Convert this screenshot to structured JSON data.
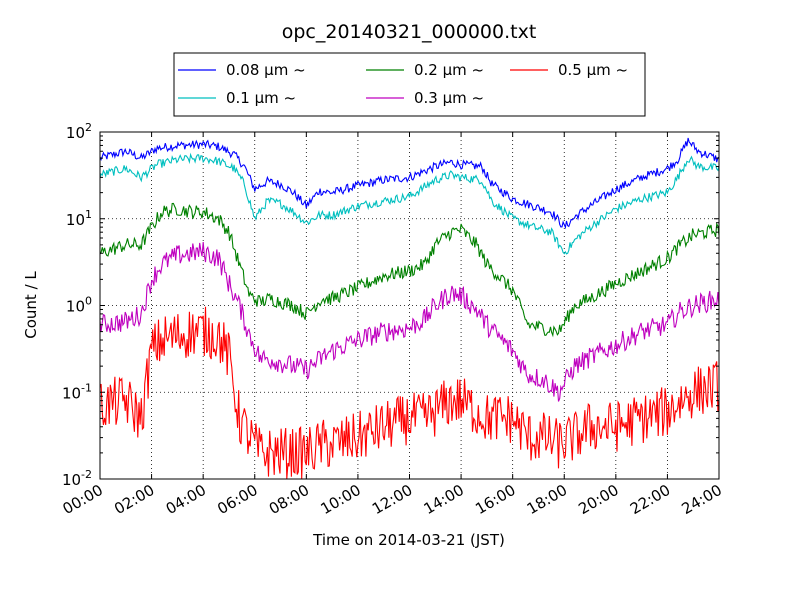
{
  "chart_data": {
    "type": "line",
    "title": "opc_20140321_000000.txt",
    "xlabel": "Time on 2014-03-21 (JST)",
    "ylabel": "Count / L",
    "y_scale": "log",
    "xlim_hours": [
      0,
      24
    ],
    "ylim": [
      0.01,
      100
    ],
    "grid": true,
    "grid_style": "dotted",
    "legend_position": "top-center",
    "x_ticks": [
      {
        "hour": 0,
        "label": "00:00"
      },
      {
        "hour": 2,
        "label": "02:00"
      },
      {
        "hour": 4,
        "label": "04:00"
      },
      {
        "hour": 6,
        "label": "06:00"
      },
      {
        "hour": 8,
        "label": "08:00"
      },
      {
        "hour": 10,
        "label": "10:00"
      },
      {
        "hour": 12,
        "label": "12:00"
      },
      {
        "hour": 14,
        "label": "14:00"
      },
      {
        "hour": 16,
        "label": "16:00"
      },
      {
        "hour": 18,
        "label": "18:00"
      },
      {
        "hour": 20,
        "label": "20:00"
      },
      {
        "hour": 22,
        "label": "22:00"
      },
      {
        "hour": 24,
        "label": "24:00"
      }
    ],
    "y_ticks": [
      {
        "value": 0.01,
        "base": "10",
        "exp": "-2"
      },
      {
        "value": 0.1,
        "base": "10",
        "exp": "-1"
      },
      {
        "value": 1,
        "base": "10",
        "exp": "0"
      },
      {
        "value": 10,
        "base": "10",
        "exp": "1"
      },
      {
        "value": 100,
        "base": "10",
        "exp": "2"
      }
    ],
    "series": [
      {
        "name": "0.08 μm ~",
        "color": "#0000ff",
        "noise": 0.05,
        "x": [
          0,
          1,
          1.6,
          2.2,
          3,
          4,
          4.6,
          5.2,
          5.6,
          6,
          6.5,
          7,
          7.5,
          8,
          8.5,
          9,
          10,
          11,
          12,
          13,
          13.6,
          14,
          14.8,
          15.2,
          16,
          16.8,
          17.5,
          18,
          18.5,
          19,
          20,
          21,
          22,
          22.4,
          22.8,
          23.2,
          24
        ],
        "y": [
          50,
          60,
          50,
          65,
          70,
          72,
          68,
          55,
          40,
          22,
          27,
          25,
          20,
          14,
          21,
          20,
          24,
          28,
          30,
          40,
          45,
          42,
          40,
          25,
          17,
          14,
          12,
          8,
          11,
          14,
          22,
          30,
          38,
          48,
          80,
          60,
          48
        ]
      },
      {
        "name": "0.1 μm ~",
        "color": "#00bfbf",
        "noise": 0.05,
        "x": [
          0,
          1,
          1.6,
          2.2,
          3,
          4,
          4.6,
          5.2,
          5.6,
          6,
          6.5,
          7,
          7.5,
          8,
          8.5,
          9,
          10,
          11,
          12,
          13,
          13.6,
          14,
          14.8,
          15.2,
          16,
          16.8,
          17.5,
          18,
          18.5,
          19,
          20,
          21,
          22,
          22.4,
          22.8,
          23.2,
          24
        ],
        "y": [
          32,
          38,
          30,
          42,
          48,
          50,
          46,
          38,
          25,
          10,
          16,
          15,
          12,
          9,
          11,
          11,
          14,
          16,
          18,
          28,
          32,
          30,
          28,
          16,
          10,
          8,
          7,
          4,
          6,
          8,
          13,
          17,
          20,
          30,
          50,
          40,
          38
        ]
      },
      {
        "name": "0.2 μm ~",
        "color": "#008000",
        "noise": 0.08,
        "x": [
          0,
          1,
          1.6,
          2,
          2.4,
          3,
          3.6,
          4,
          4.6,
          5,
          5.4,
          5.8,
          6.2,
          6.6,
          7,
          7.5,
          8,
          8.6,
          9,
          10,
          11,
          12,
          12.6,
          13,
          13.6,
          14,
          14.6,
          15,
          16,
          16.6,
          17.2,
          17.8,
          18.4,
          19,
          20,
          21,
          22,
          22.5,
          23,
          24
        ],
        "y": [
          4,
          5,
          5,
          8,
          12,
          13,
          12,
          12,
          10,
          7,
          3,
          1.3,
          1.1,
          1.2,
          1.1,
          1.0,
          0.8,
          1.2,
          1.2,
          1.6,
          2.2,
          2.5,
          3.0,
          5.0,
          7.0,
          7.5,
          5,
          3.0,
          1.5,
          0.6,
          0.55,
          0.5,
          1.0,
          1.2,
          1.8,
          2.5,
          3.5,
          5,
          6.5,
          7.5
        ]
      },
      {
        "name": "0.3 μm ~",
        "color": "#bf00bf",
        "noise": 0.12,
        "x": [
          0,
          1,
          1.6,
          2,
          2.4,
          3,
          3.6,
          4,
          4.6,
          5,
          5.4,
          5.8,
          6.2,
          6.6,
          7,
          7.5,
          8,
          8.6,
          9,
          10,
          11,
          12,
          12.6,
          13,
          13.6,
          14,
          14.6,
          15,
          16,
          16.6,
          17.2,
          17.8,
          18.4,
          19,
          20,
          21,
          22,
          22.5,
          23,
          24
        ],
        "y": [
          0.6,
          0.65,
          0.8,
          2.0,
          3.0,
          3.8,
          4.0,
          4.2,
          3.5,
          1.8,
          1.0,
          0.45,
          0.25,
          0.24,
          0.22,
          0.2,
          0.18,
          0.25,
          0.3,
          0.4,
          0.5,
          0.55,
          0.7,
          1.0,
          1.4,
          1.3,
          0.9,
          0.6,
          0.3,
          0.16,
          0.14,
          0.1,
          0.2,
          0.25,
          0.35,
          0.5,
          0.6,
          0.85,
          1.0,
          1.2
        ]
      },
      {
        "name": "0.5 μm ~",
        "color": "#ff0000",
        "noise": 0.3,
        "x": [
          0,
          1,
          1.6,
          2,
          2.4,
          3,
          3.6,
          4,
          4.6,
          5,
          5.4,
          5.8,
          6.2,
          6.6,
          7,
          7.5,
          8,
          8.6,
          9,
          10,
          11,
          12,
          12.6,
          13,
          13.6,
          14,
          14.6,
          15,
          16,
          16.6,
          17.2,
          17.8,
          18.4,
          19,
          20,
          21,
          22,
          22.5,
          23,
          24
        ],
        "y": [
          0.07,
          0.08,
          0.05,
          0.3,
          0.4,
          0.45,
          0.5,
          0.5,
          0.45,
          0.25,
          0.05,
          0.03,
          0.02,
          0.02,
          0.02,
          0.02,
          0.02,
          0.025,
          0.025,
          0.03,
          0.04,
          0.05,
          0.05,
          0.06,
          0.08,
          0.08,
          0.06,
          0.05,
          0.05,
          0.03,
          0.03,
          0.025,
          0.03,
          0.04,
          0.04,
          0.05,
          0.06,
          0.08,
          0.1,
          0.12
        ]
      }
    ]
  }
}
